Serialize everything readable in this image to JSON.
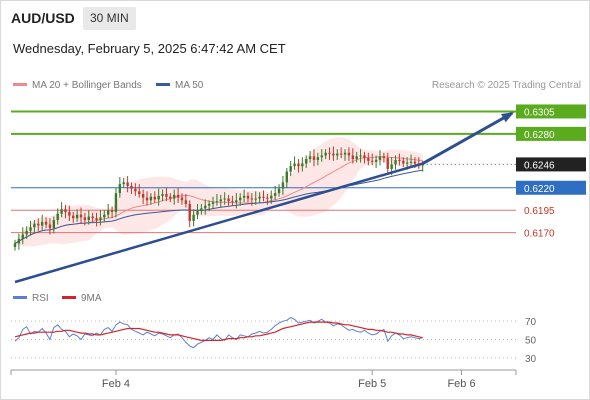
{
  "header": {
    "symbol": "AUD/USD",
    "timeframe": "30 MIN",
    "datetime": "Wednesday, February 5, 2025 6:47:42 AM CET",
    "credit": "Research © 2025 Trading Central"
  },
  "legend": {
    "ma20_label": "MA 20 + Bollinger Bands",
    "ma50_label": "MA 50",
    "rsi_label": "RSI",
    "ma9_label": "9MA"
  },
  "colors": {
    "ma20": "#f08a8a",
    "ma50": "#3a5a9a",
    "bollinger_fill": "#fde3e3",
    "resistance": "#5aab1e",
    "support": "#e07575",
    "pivot": "#2e6fc4",
    "trend": "#2d4f92",
    "candle_up": "#3a7a2a",
    "candle_down": "#c0392b",
    "rsi": "#5b7fd6",
    "rsi_ma": "#d42525",
    "current_price_bg": "#222222"
  },
  "chart_data": [
    {
      "type": "candlestick",
      "title": "AUD/USD 30 MIN",
      "x_ticks": [
        "Feb 4",
        "Feb 5",
        "Feb 6"
      ],
      "y_range": [
        0.6115,
        0.632
      ],
      "current_price": 0.6246,
      "levels": [
        {
          "value": 0.6305,
          "label": "0.6305",
          "kind": "resistance"
        },
        {
          "value": 0.628,
          "label": "0.6280",
          "kind": "resistance"
        },
        {
          "value": 0.622,
          "label": "0.6220",
          "kind": "pivot"
        },
        {
          "value": 0.6195,
          "label": "0.6195",
          "kind": "support"
        },
        {
          "value": 0.617,
          "label": "0.6170",
          "kind": "support"
        }
      ],
      "close": [
        0.6158,
        0.6163,
        0.6168,
        0.6172,
        0.6176,
        0.618,
        0.6178,
        0.6182,
        0.6179,
        0.6175,
        0.6184,
        0.6191,
        0.6196,
        0.6193,
        0.6189,
        0.6186,
        0.619,
        0.6187,
        0.6184,
        0.6188,
        0.6186,
        0.6184,
        0.6187,
        0.619,
        0.6195,
        0.6193,
        0.6214,
        0.6224,
        0.6226,
        0.6222,
        0.6219,
        0.6216,
        0.6213,
        0.6209,
        0.6206,
        0.621,
        0.6207,
        0.6211,
        0.6213,
        0.621,
        0.6208,
        0.6212,
        0.6209,
        0.6206,
        0.6202,
        0.6183,
        0.619,
        0.6194,
        0.6197,
        0.62,
        0.6202,
        0.6204,
        0.6205,
        0.6207,
        0.6208,
        0.6205,
        0.6204,
        0.6206,
        0.6209,
        0.6211,
        0.6208,
        0.6207,
        0.6208,
        0.621,
        0.6209,
        0.6208,
        0.6211,
        0.6214,
        0.6219,
        0.6226,
        0.6238,
        0.6244,
        0.6247,
        0.6244,
        0.6247,
        0.6252,
        0.6255,
        0.6251,
        0.6254,
        0.6256,
        0.6259,
        0.6258,
        0.6256,
        0.6258,
        0.6257,
        0.6259,
        0.6256,
        0.6252,
        0.6255,
        0.6256,
        0.6253,
        0.625,
        0.6249,
        0.6251,
        0.6255,
        0.6253,
        0.6241,
        0.6246,
        0.6251,
        0.625,
        0.6247,
        0.6248,
        0.6249,
        0.6247,
        0.6245,
        0.6246
      ],
      "trend_line": {
        "from": {
          "index": 0,
          "price": 0.6115
        },
        "to": {
          "index": 105,
          "price": 0.6247
        }
      },
      "projection": {
        "from": {
          "index": 105,
          "price": 0.6247
        },
        "to": {
          "index": 128,
          "price": 0.6303
        }
      }
    },
    {
      "type": "line",
      "title": "RSI",
      "y_ticks": [
        70,
        50,
        30
      ],
      "y_range": [
        20,
        80
      ],
      "series": [
        {
          "name": "RSI",
          "values": [
            48,
            52,
            61,
            64,
            56,
            59,
            58,
            62,
            57,
            50,
            63,
            66,
            61,
            59,
            53,
            56,
            54,
            50,
            56,
            55,
            54,
            57,
            55,
            61,
            63,
            59,
            66,
            69,
            67,
            66,
            61,
            59,
            57,
            55,
            58,
            56,
            54,
            57,
            56,
            54,
            52,
            55,
            56,
            52,
            47,
            43,
            41,
            45,
            47,
            49,
            52,
            50,
            55,
            51,
            49,
            55,
            52,
            50,
            55,
            54,
            53,
            56,
            57,
            59,
            57,
            58,
            61,
            65,
            68,
            70,
            71,
            74,
            72,
            68,
            69,
            70,
            71,
            68,
            70,
            72,
            69,
            68,
            65,
            67,
            66,
            63,
            60,
            61,
            59,
            58,
            60,
            57,
            55,
            56,
            59,
            61,
            48,
            54,
            57,
            55,
            51,
            52,
            53,
            52,
            51,
            52
          ]
        },
        {
          "name": "9MA",
          "values": [
            53,
            54,
            55,
            56,
            57,
            57,
            58,
            58,
            58,
            58,
            58,
            59,
            59,
            60,
            60,
            59,
            58,
            57,
            57,
            56,
            56,
            55,
            55,
            56,
            57,
            58,
            59,
            60,
            61,
            62,
            62,
            62,
            62,
            61,
            60,
            59,
            58,
            58,
            57,
            56,
            55,
            55,
            55,
            54,
            53,
            52,
            51,
            50,
            49,
            49,
            49,
            49,
            49,
            49,
            50,
            51,
            51,
            51,
            52,
            52,
            53,
            53,
            54,
            54,
            55,
            56,
            57,
            58,
            60,
            62,
            63,
            64,
            65,
            66,
            67,
            68,
            69,
            69,
            69,
            69,
            69,
            69,
            68,
            68,
            67,
            66,
            66,
            65,
            64,
            63,
            62,
            61,
            61,
            60,
            60,
            59,
            58,
            58,
            57,
            56,
            56,
            55,
            55,
            54,
            53,
            52
          ]
        }
      ]
    }
  ]
}
